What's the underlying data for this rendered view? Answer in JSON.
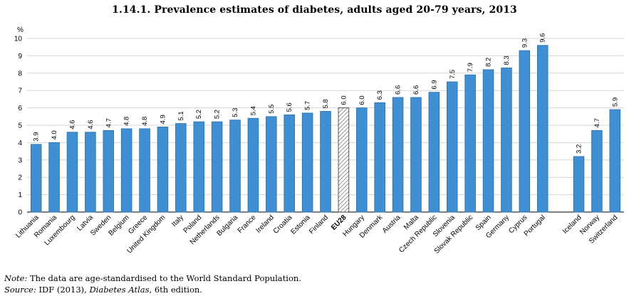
{
  "title": "1.14.1.  Prevalence estimates of diabetes, adults aged 20-79 years, 2013",
  "note": {
    "note_label": "Note:",
    "note_text": "The data are age-standardised to the World Standard Population.",
    "source_label": "Source:",
    "source_prefix": "IDF (2013),",
    "source_title": "Diabetes Atlas",
    "source_suffix": ", 6th edition."
  },
  "colors": {
    "bar": "#3f8fd2",
    "bar_stroke": "#2a6ea8",
    "highlight_hatch": "#555555"
  },
  "chart_data": {
    "type": "bar",
    "title": "1.14.1.  Prevalence estimates of diabetes, adults aged 20-79 years, 2013",
    "ylabel": "%",
    "xlabel": "",
    "ylim": [
      0,
      10
    ],
    "yticks": [
      0,
      1,
      2,
      3,
      4,
      5,
      6,
      7,
      8,
      9,
      10
    ],
    "grid": true,
    "highlight": "EU28",
    "categories": [
      "Lithuania",
      "Romania",
      "Luxembourg",
      "Latvia",
      "Sweden",
      "Belgium",
      "Greece",
      "United Kingdom",
      "Italy",
      "Poland",
      "Netherlands",
      "Bulgaria",
      "France",
      "Ireland",
      "Croatia",
      "Estonia",
      "Finland",
      "EU28",
      "Hungary",
      "Denmark",
      "Austria",
      "Malta",
      "Czech Republic",
      "Slovenia",
      "Slovak Republic",
      "Spain",
      "Germany",
      "Cyprus",
      "Portugal",
      "",
      "Iceland",
      "Norway",
      "Switzerland"
    ],
    "values": [
      3.9,
      4.0,
      4.6,
      4.6,
      4.7,
      4.8,
      4.8,
      4.9,
      5.1,
      5.2,
      5.2,
      5.3,
      5.4,
      5.5,
      5.6,
      5.7,
      5.8,
      6.0,
      6.0,
      6.3,
      6.6,
      6.6,
      6.9,
      7.5,
      7.9,
      8.2,
      8.3,
      9.3,
      9.6,
      null,
      3.2,
      4.7,
      5.9
    ],
    "value_labels": [
      "3.9",
      "4.0",
      "4.6",
      "4.6",
      "4.7",
      "4.8",
      "4.8",
      "4.9",
      "5.1",
      "5.2",
      "5.2",
      "5.3",
      "5.4",
      "5.5",
      "5.6",
      "5.7",
      "5.8",
      "6.0",
      "6.0",
      "6.3",
      "6.6",
      "6.6",
      "6.9",
      "7.5",
      "7.9",
      "8.2",
      "8.3",
      "9.3",
      "9.6",
      "",
      "3.2",
      "4.7",
      "5.9"
    ]
  }
}
